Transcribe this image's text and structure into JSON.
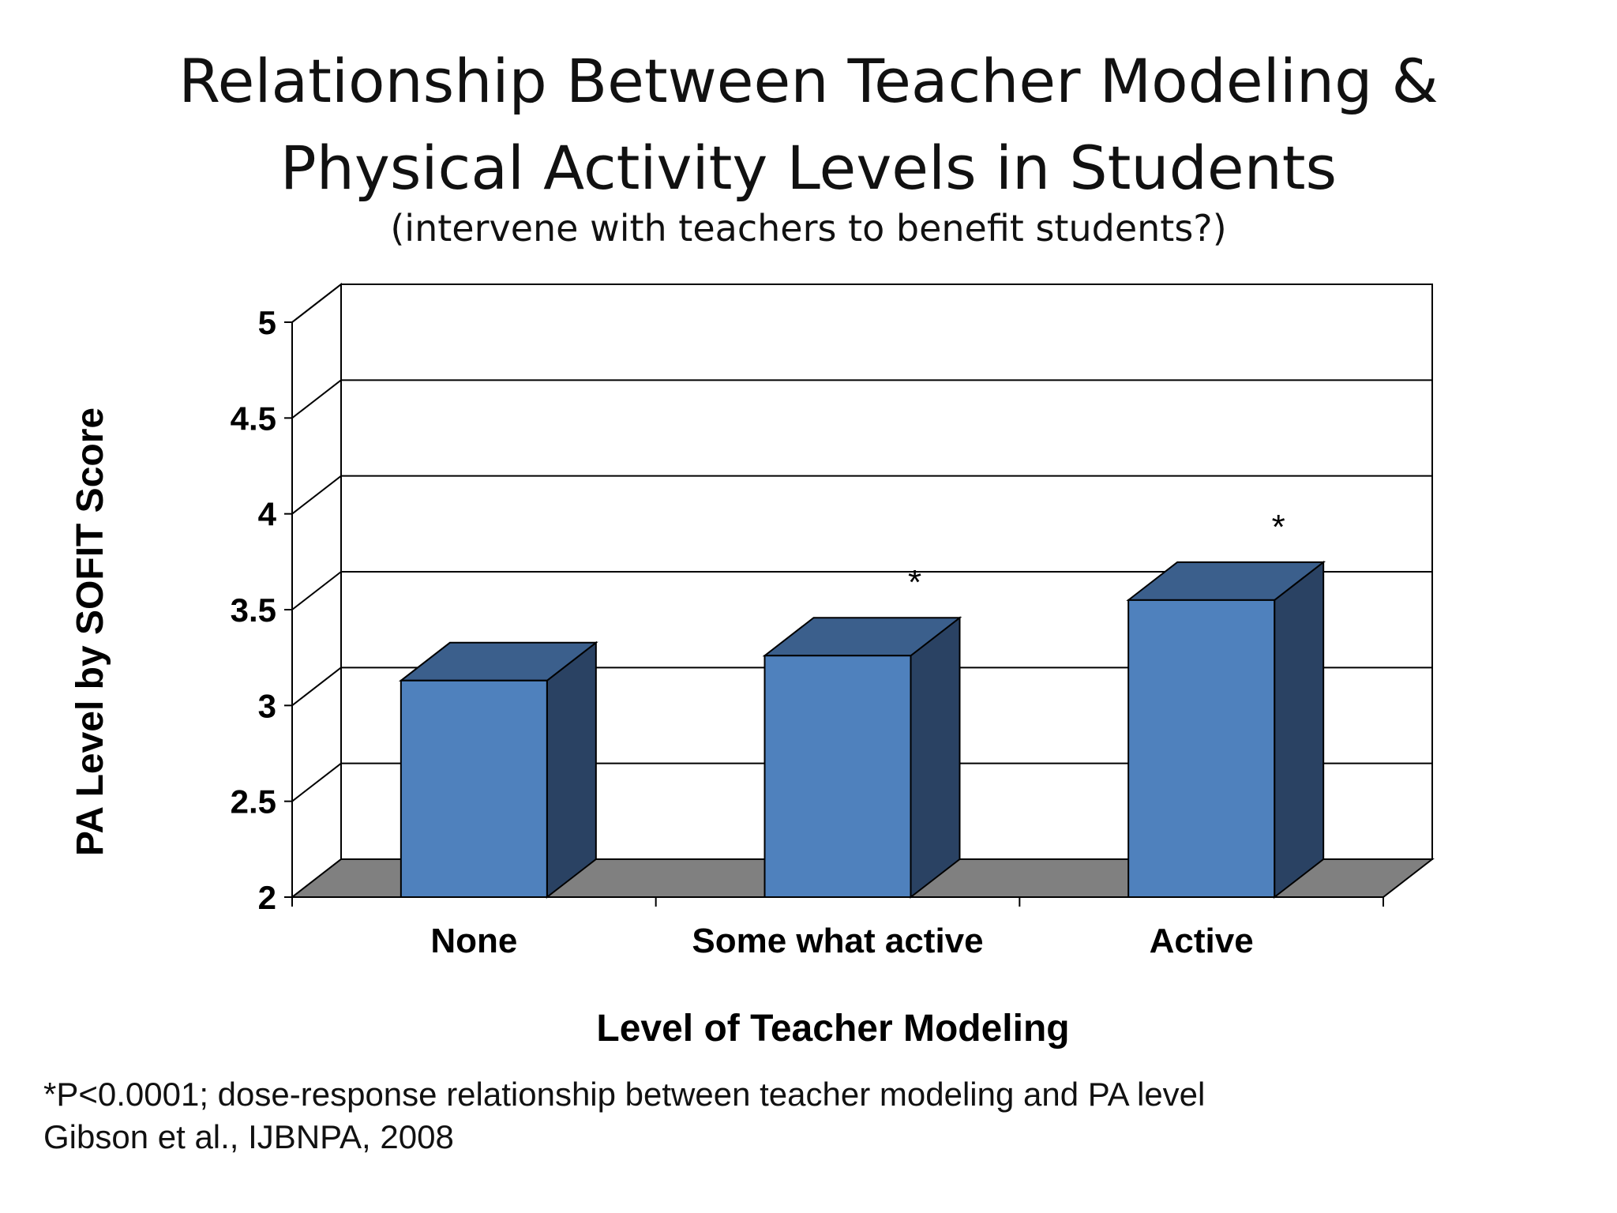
{
  "slide": {
    "title_line1": "Relationship Between Teacher Modeling &",
    "title_line2": "Physical Activity Levels in Students",
    "subtitle": "(intervene with teachers to benefit students?)",
    "footnote_line1": "*P<0.0001; dose-response relationship between teacher modeling and PA level",
    "footnote_line2": "Gibson et al., IJBNPA, 2008"
  },
  "chart_data": {
    "type": "bar",
    "style": "3d-column",
    "categories": [
      "None",
      "Some what active",
      "Active"
    ],
    "values": [
      3.13,
      3.26,
      3.55
    ],
    "annotations": [
      "",
      "*",
      "*"
    ],
    "xlabel": "Level of Teacher Modeling",
    "ylabel": "PA Level by SOFIT Score",
    "ylim": [
      2,
      5
    ],
    "yticks": [
      2,
      2.5,
      3,
      3.5,
      4,
      4.5,
      5
    ],
    "ytick_labels": [
      "2",
      "2.5",
      "3",
      "3.5",
      "4",
      "4.5",
      "5"
    ],
    "grid": true,
    "legend": "none",
    "colors": {
      "bar_front": "#4f81bd",
      "bar_top": "#3b5f8c",
      "bar_side": "#2a4263",
      "floor": "#808080"
    }
  }
}
